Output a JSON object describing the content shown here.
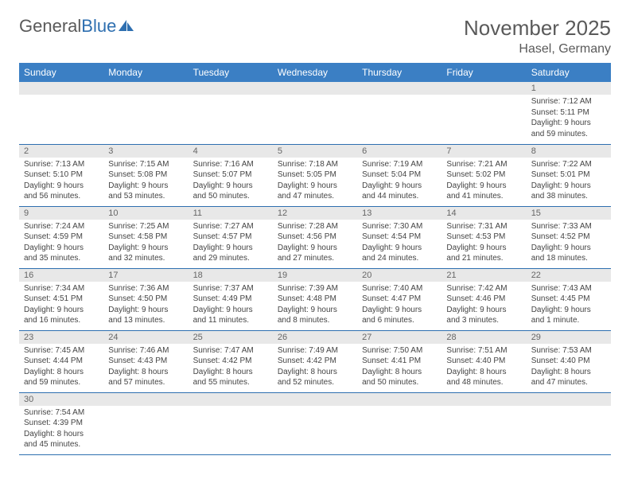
{
  "logo": {
    "part1": "General",
    "part2": "Blue"
  },
  "title": "November 2025",
  "location": "Hasel, Germany",
  "day_headers": [
    "Sunday",
    "Monday",
    "Tuesday",
    "Wednesday",
    "Thursday",
    "Friday",
    "Saturday"
  ],
  "colors": {
    "header_bg": "#3b7fc4",
    "rule": "#2e6fb0",
    "daynum_bg": "#e8e8e8",
    "text": "#444"
  },
  "weeks": [
    [
      {
        "n": "",
        "lines": []
      },
      {
        "n": "",
        "lines": []
      },
      {
        "n": "",
        "lines": []
      },
      {
        "n": "",
        "lines": []
      },
      {
        "n": "",
        "lines": []
      },
      {
        "n": "",
        "lines": []
      },
      {
        "n": "1",
        "lines": [
          "Sunrise: 7:12 AM",
          "Sunset: 5:11 PM",
          "Daylight: 9 hours",
          "and 59 minutes."
        ]
      }
    ],
    [
      {
        "n": "2",
        "lines": [
          "Sunrise: 7:13 AM",
          "Sunset: 5:10 PM",
          "Daylight: 9 hours",
          "and 56 minutes."
        ]
      },
      {
        "n": "3",
        "lines": [
          "Sunrise: 7:15 AM",
          "Sunset: 5:08 PM",
          "Daylight: 9 hours",
          "and 53 minutes."
        ]
      },
      {
        "n": "4",
        "lines": [
          "Sunrise: 7:16 AM",
          "Sunset: 5:07 PM",
          "Daylight: 9 hours",
          "and 50 minutes."
        ]
      },
      {
        "n": "5",
        "lines": [
          "Sunrise: 7:18 AM",
          "Sunset: 5:05 PM",
          "Daylight: 9 hours",
          "and 47 minutes."
        ]
      },
      {
        "n": "6",
        "lines": [
          "Sunrise: 7:19 AM",
          "Sunset: 5:04 PM",
          "Daylight: 9 hours",
          "and 44 minutes."
        ]
      },
      {
        "n": "7",
        "lines": [
          "Sunrise: 7:21 AM",
          "Sunset: 5:02 PM",
          "Daylight: 9 hours",
          "and 41 minutes."
        ]
      },
      {
        "n": "8",
        "lines": [
          "Sunrise: 7:22 AM",
          "Sunset: 5:01 PM",
          "Daylight: 9 hours",
          "and 38 minutes."
        ]
      }
    ],
    [
      {
        "n": "9",
        "lines": [
          "Sunrise: 7:24 AM",
          "Sunset: 4:59 PM",
          "Daylight: 9 hours",
          "and 35 minutes."
        ]
      },
      {
        "n": "10",
        "lines": [
          "Sunrise: 7:25 AM",
          "Sunset: 4:58 PM",
          "Daylight: 9 hours",
          "and 32 minutes."
        ]
      },
      {
        "n": "11",
        "lines": [
          "Sunrise: 7:27 AM",
          "Sunset: 4:57 PM",
          "Daylight: 9 hours",
          "and 29 minutes."
        ]
      },
      {
        "n": "12",
        "lines": [
          "Sunrise: 7:28 AM",
          "Sunset: 4:56 PM",
          "Daylight: 9 hours",
          "and 27 minutes."
        ]
      },
      {
        "n": "13",
        "lines": [
          "Sunrise: 7:30 AM",
          "Sunset: 4:54 PM",
          "Daylight: 9 hours",
          "and 24 minutes."
        ]
      },
      {
        "n": "14",
        "lines": [
          "Sunrise: 7:31 AM",
          "Sunset: 4:53 PM",
          "Daylight: 9 hours",
          "and 21 minutes."
        ]
      },
      {
        "n": "15",
        "lines": [
          "Sunrise: 7:33 AM",
          "Sunset: 4:52 PM",
          "Daylight: 9 hours",
          "and 18 minutes."
        ]
      }
    ],
    [
      {
        "n": "16",
        "lines": [
          "Sunrise: 7:34 AM",
          "Sunset: 4:51 PM",
          "Daylight: 9 hours",
          "and 16 minutes."
        ]
      },
      {
        "n": "17",
        "lines": [
          "Sunrise: 7:36 AM",
          "Sunset: 4:50 PM",
          "Daylight: 9 hours",
          "and 13 minutes."
        ]
      },
      {
        "n": "18",
        "lines": [
          "Sunrise: 7:37 AM",
          "Sunset: 4:49 PM",
          "Daylight: 9 hours",
          "and 11 minutes."
        ]
      },
      {
        "n": "19",
        "lines": [
          "Sunrise: 7:39 AM",
          "Sunset: 4:48 PM",
          "Daylight: 9 hours",
          "and 8 minutes."
        ]
      },
      {
        "n": "20",
        "lines": [
          "Sunrise: 7:40 AM",
          "Sunset: 4:47 PM",
          "Daylight: 9 hours",
          "and 6 minutes."
        ]
      },
      {
        "n": "21",
        "lines": [
          "Sunrise: 7:42 AM",
          "Sunset: 4:46 PM",
          "Daylight: 9 hours",
          "and 3 minutes."
        ]
      },
      {
        "n": "22",
        "lines": [
          "Sunrise: 7:43 AM",
          "Sunset: 4:45 PM",
          "Daylight: 9 hours",
          "and 1 minute."
        ]
      }
    ],
    [
      {
        "n": "23",
        "lines": [
          "Sunrise: 7:45 AM",
          "Sunset: 4:44 PM",
          "Daylight: 8 hours",
          "and 59 minutes."
        ]
      },
      {
        "n": "24",
        "lines": [
          "Sunrise: 7:46 AM",
          "Sunset: 4:43 PM",
          "Daylight: 8 hours",
          "and 57 minutes."
        ]
      },
      {
        "n": "25",
        "lines": [
          "Sunrise: 7:47 AM",
          "Sunset: 4:42 PM",
          "Daylight: 8 hours",
          "and 55 minutes."
        ]
      },
      {
        "n": "26",
        "lines": [
          "Sunrise: 7:49 AM",
          "Sunset: 4:42 PM",
          "Daylight: 8 hours",
          "and 52 minutes."
        ]
      },
      {
        "n": "27",
        "lines": [
          "Sunrise: 7:50 AM",
          "Sunset: 4:41 PM",
          "Daylight: 8 hours",
          "and 50 minutes."
        ]
      },
      {
        "n": "28",
        "lines": [
          "Sunrise: 7:51 AM",
          "Sunset: 4:40 PM",
          "Daylight: 8 hours",
          "and 48 minutes."
        ]
      },
      {
        "n": "29",
        "lines": [
          "Sunrise: 7:53 AM",
          "Sunset: 4:40 PM",
          "Daylight: 8 hours",
          "and 47 minutes."
        ]
      }
    ],
    [
      {
        "n": "30",
        "lines": [
          "Sunrise: 7:54 AM",
          "Sunset: 4:39 PM",
          "Daylight: 8 hours",
          "and 45 minutes."
        ]
      },
      {
        "n": "",
        "lines": []
      },
      {
        "n": "",
        "lines": []
      },
      {
        "n": "",
        "lines": []
      },
      {
        "n": "",
        "lines": []
      },
      {
        "n": "",
        "lines": []
      },
      {
        "n": "",
        "lines": []
      }
    ]
  ]
}
